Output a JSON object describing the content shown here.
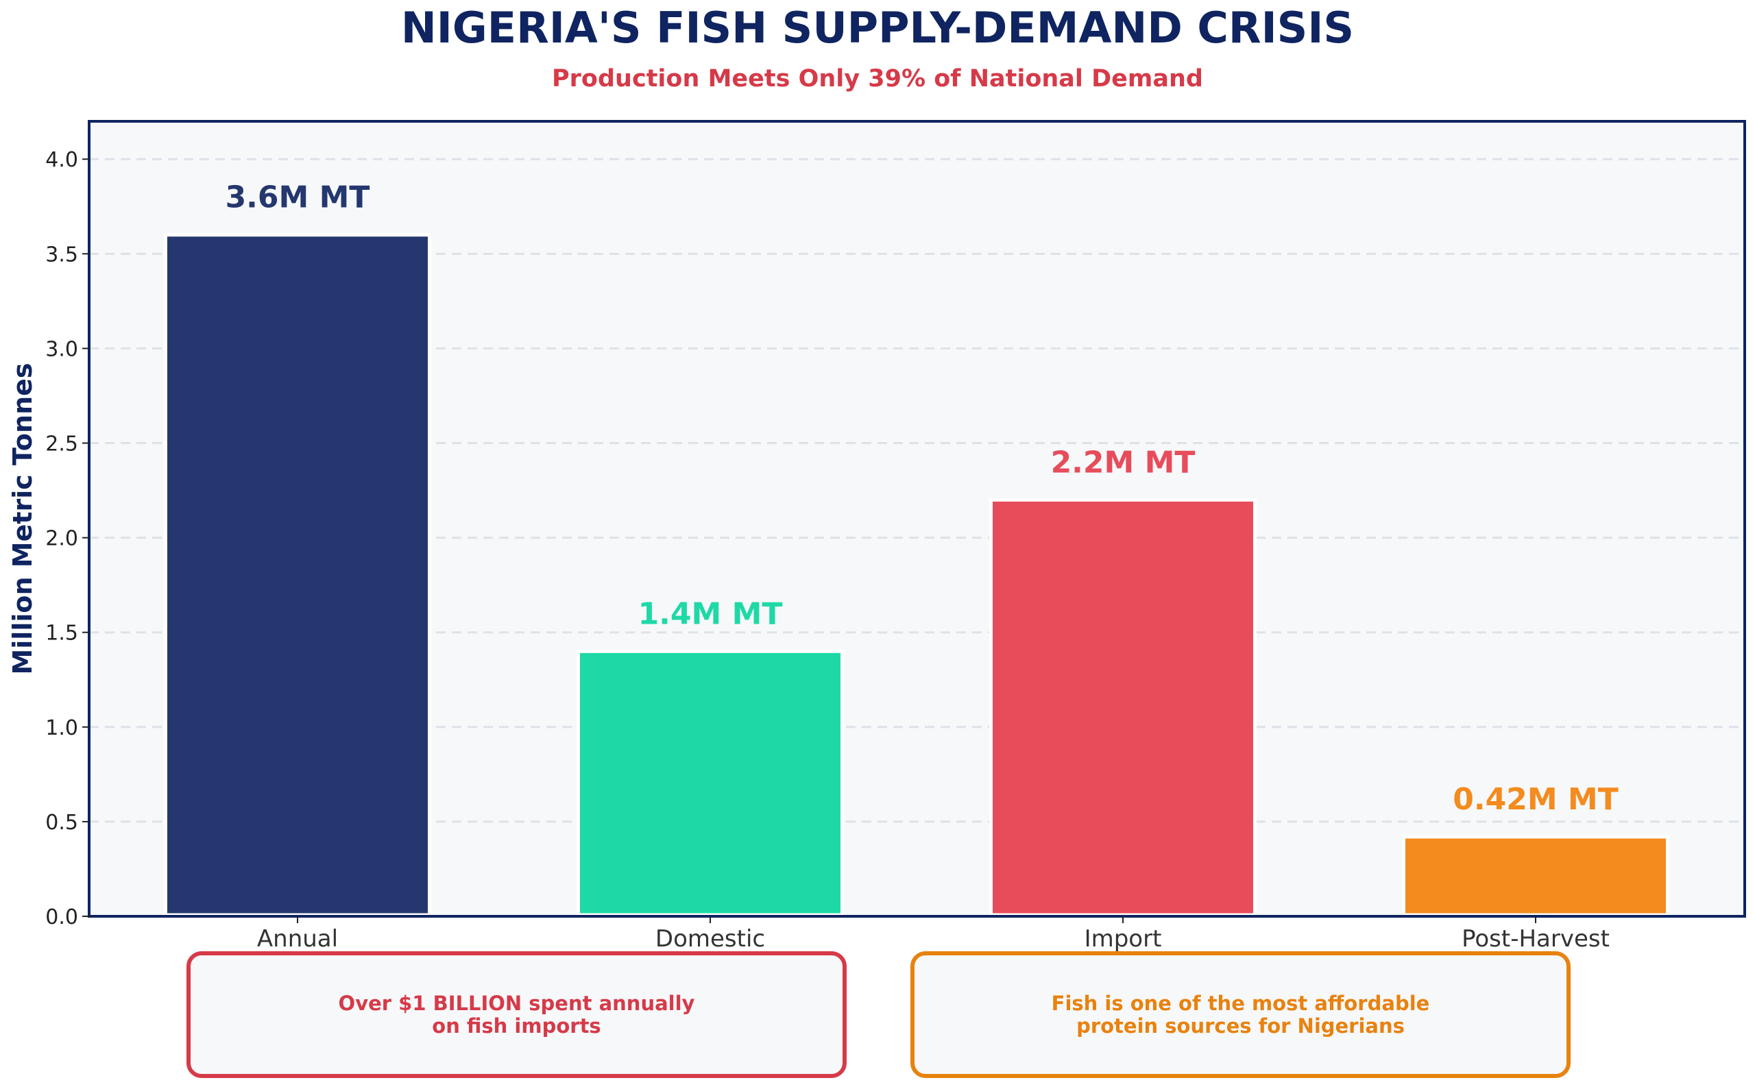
{
  "chart_data": {
    "type": "bar",
    "title": "NIGERIA'S FISH SUPPLY-DEMAND CRISIS",
    "subtitle": "Production Meets Only 39% of National Demand",
    "ylabel": "Million Metric Tonnes",
    "xlabel": "",
    "ylim": [
      0,
      4.2
    ],
    "yticks": [
      0.0,
      0.5,
      1.0,
      1.5,
      2.0,
      2.5,
      3.0,
      3.5,
      4.0
    ],
    "grid": true,
    "categories": [
      "Annual",
      "Domestic",
      "Import",
      "Post-Harvest"
    ],
    "values": [
      3.6,
      1.4,
      2.2,
      0.42
    ],
    "data_labels": [
      "3.6M MT",
      "1.4M MT",
      "2.2M MT",
      "0.42M MT"
    ],
    "colors": [
      "#24376e",
      "#1ed9a6",
      "#e74c5b",
      "#f38b1e"
    ]
  },
  "callouts": [
    {
      "text": "Over $1 BILLION spent annually\non fish imports",
      "color": "#d63a48"
    },
    {
      "text": "Fish is one of the most affordable\nprotein sources for Nigerians",
      "color": "#e8820f"
    }
  ],
  "colors": {
    "title": "#0f2460",
    "subtitle": "#d63a48",
    "axis": "#0f2460",
    "plot_bg": "#f7f8fa",
    "grid": "#dde1e8"
  }
}
